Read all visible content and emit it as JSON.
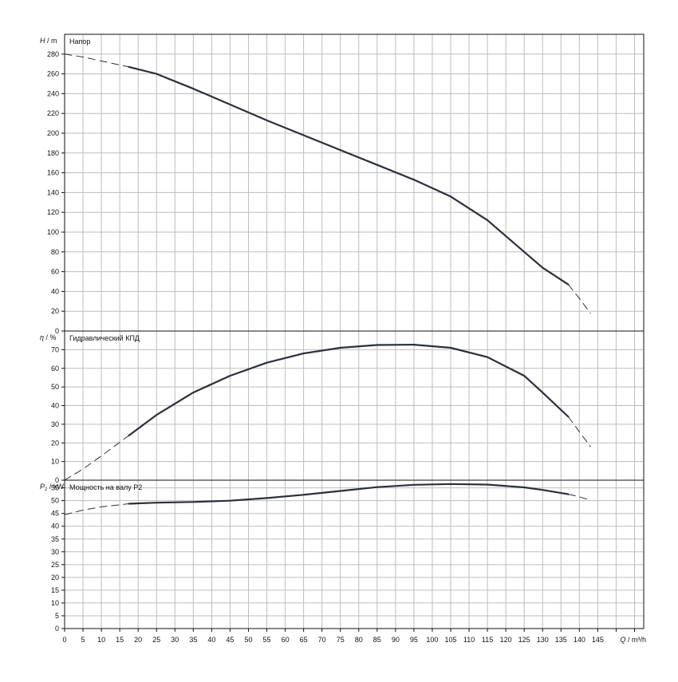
{
  "chart_data": [
    {
      "type": "line",
      "id": "head",
      "title": "Напор",
      "ylabel_symbol": "H",
      "ylabel_unit": "m",
      "ylim": [
        0,
        300
      ],
      "yticks": [
        0,
        20,
        40,
        60,
        80,
        100,
        120,
        140,
        160,
        180,
        200,
        220,
        240,
        260,
        280
      ],
      "grid": true,
      "series": [
        {
          "style": "dashed",
          "x": [
            0,
            5,
            10,
            15,
            17.5
          ],
          "y": [
            280,
            277,
            273,
            269,
            267
          ]
        },
        {
          "style": "solid",
          "x": [
            17.5,
            25,
            35,
            45,
            55,
            65,
            75,
            85,
            95,
            105,
            115,
            125,
            130,
            137
          ],
          "y": [
            267,
            260,
            245,
            229,
            213,
            198,
            183,
            168,
            153,
            136,
            112,
            80,
            64,
            47
          ]
        },
        {
          "style": "dashed",
          "x": [
            137,
            140,
            143
          ],
          "y": [
            47,
            33,
            18
          ]
        }
      ]
    },
    {
      "type": "line",
      "id": "efficiency",
      "title": "Гидравлический КПД",
      "ylabel_symbol": "η",
      "ylabel_unit": "%",
      "ylim": [
        0,
        80
      ],
      "yticks": [
        0,
        10,
        20,
        30,
        40,
        50,
        60,
        70
      ],
      "grid": true,
      "series": [
        {
          "style": "dashed",
          "x": [
            0,
            5,
            10,
            17.5
          ],
          "y": [
            0,
            6,
            13,
            24
          ]
        },
        {
          "style": "solid",
          "x": [
            17.5,
            25,
            35,
            45,
            55,
            65,
            75,
            85,
            95,
            105,
            115,
            125,
            130,
            137
          ],
          "y": [
            24,
            35,
            47,
            56,
            63,
            68,
            71,
            72.5,
            72.7,
            71,
            66,
            56,
            47,
            34
          ]
        },
        {
          "style": "dashed",
          "x": [
            137,
            140,
            143
          ],
          "y": [
            34,
            26,
            18
          ]
        }
      ]
    },
    {
      "type": "line",
      "id": "power",
      "title": "Мощность на валу P2",
      "ylabel_symbol": "P",
      "ylabel_sub": "2",
      "ylabel_unit": "kW",
      "ylim": [
        0,
        58
      ],
      "yticks": [
        0,
        5,
        10,
        15,
        20,
        25,
        30,
        35,
        40,
        45,
        50,
        55
      ],
      "grid": true,
      "series": [
        {
          "style": "dashed",
          "x": [
            0,
            5,
            10,
            17.5
          ],
          "y": [
            44.5,
            46.3,
            47.6,
            48.8
          ]
        },
        {
          "style": "solid",
          "x": [
            17.5,
            25,
            35,
            45,
            55,
            65,
            75,
            85,
            95,
            105,
            115,
            125,
            130,
            137
          ],
          "y": [
            48.8,
            49.2,
            49.5,
            50,
            51,
            52.3,
            53.8,
            55.3,
            56.2,
            56.5,
            56.3,
            55.2,
            54.2,
            52.5
          ]
        },
        {
          "style": "dashed",
          "x": [
            137,
            140,
            142
          ],
          "y": [
            52.5,
            51.5,
            50.6
          ]
        }
      ]
    }
  ],
  "x_axis": {
    "label_symbol": "Q",
    "label_unit": "m³/h",
    "xlim": [
      0,
      157.5
    ],
    "tick_step": 5,
    "label_max": 145
  }
}
